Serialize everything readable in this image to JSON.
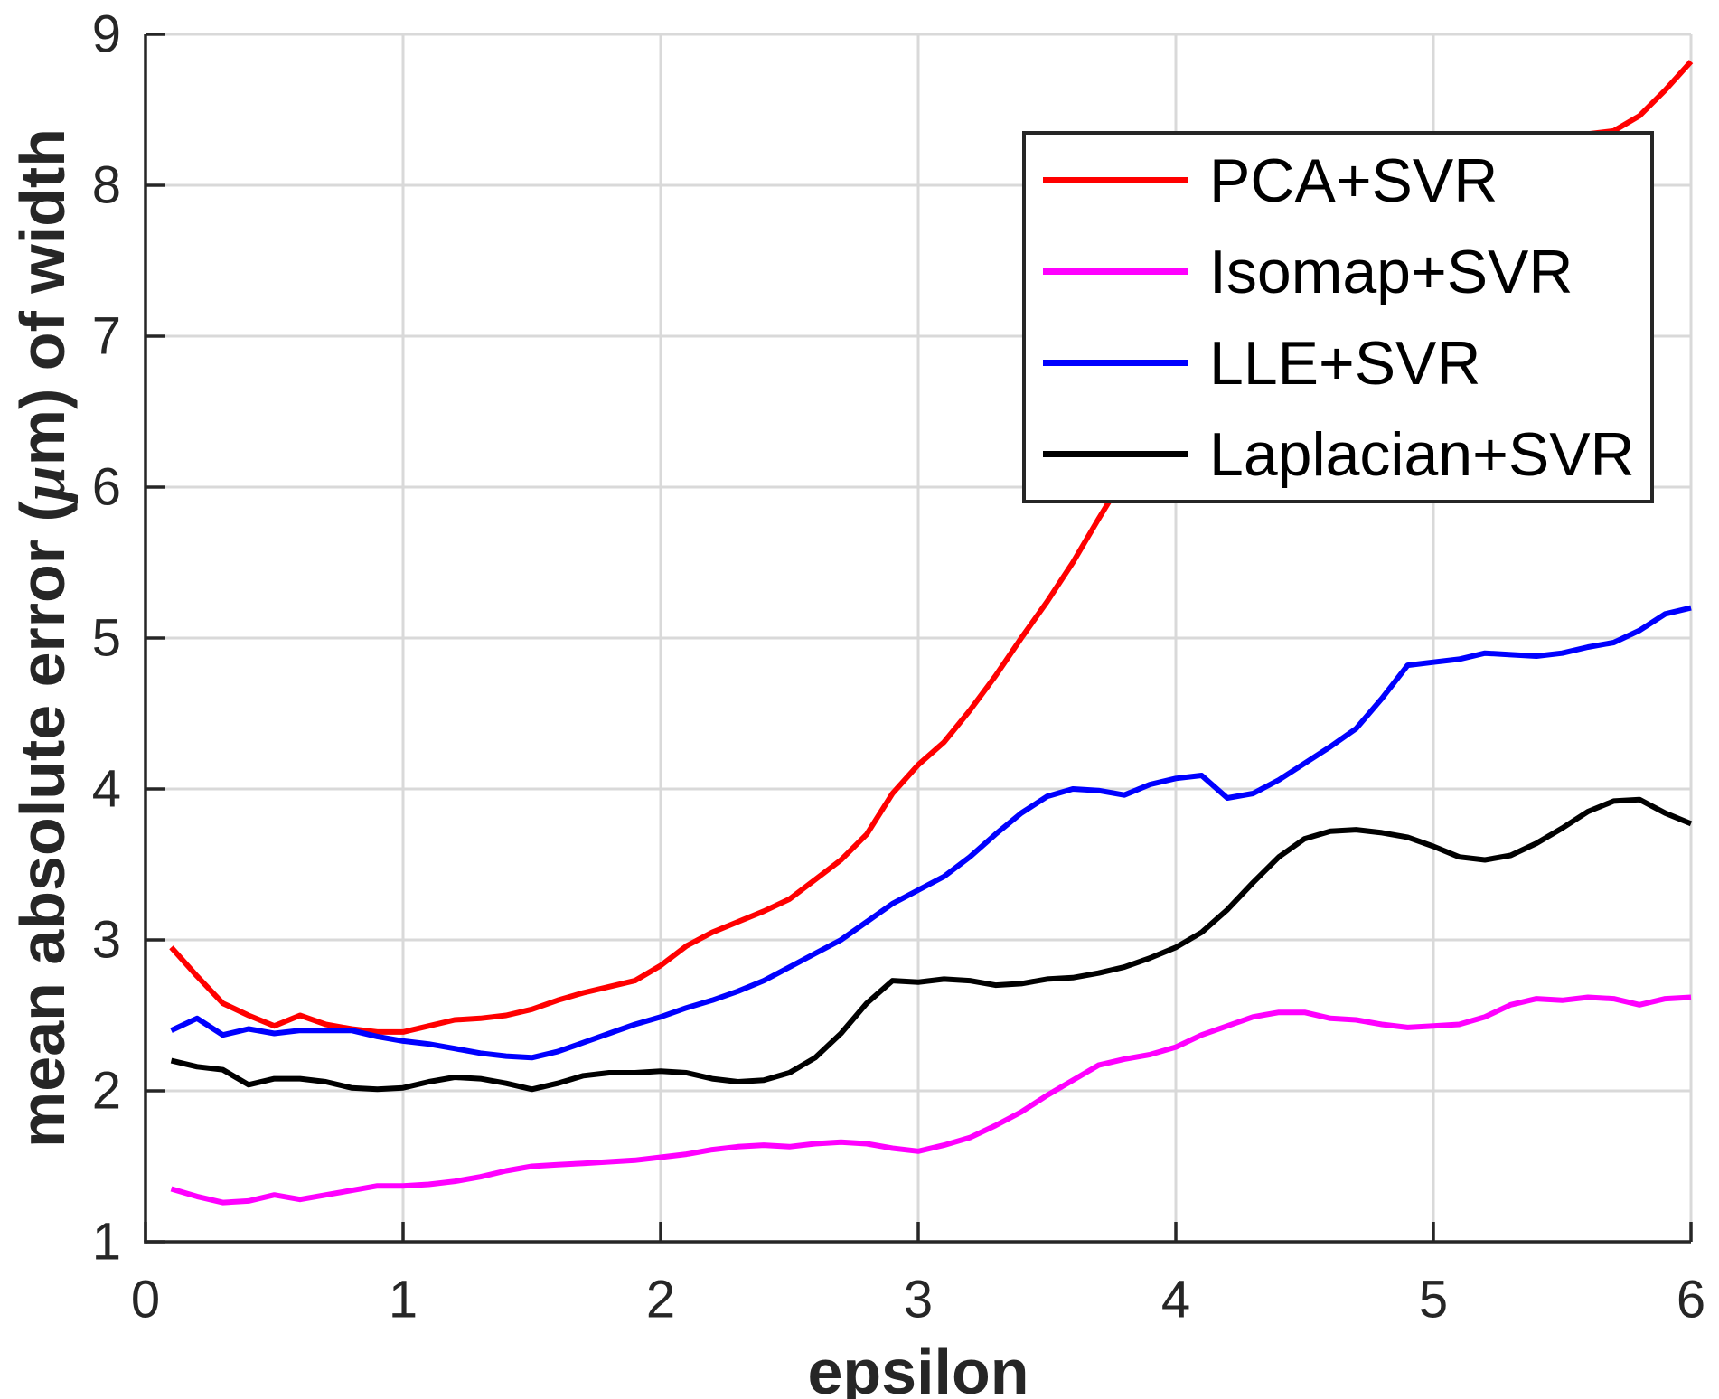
{
  "figure": {
    "background": "#ffffff"
  },
  "axes": {
    "axis_color": "#262626",
    "grid_color": "#d9d9d9",
    "x": {
      "label": "epsilon",
      "ticks": [
        "0",
        "1",
        "2",
        "3",
        "4",
        "5",
        "6"
      ]
    },
    "y": {
      "label_full": "mean absolute error (μm) of width",
      "label_pre": "mean absolute error (",
      "label_mu": "μ",
      "label_post": "m) of width",
      "ticks": [
        "1",
        "2",
        "3",
        "4",
        "5",
        "6",
        "7",
        "8",
        "9"
      ]
    }
  },
  "legend": {
    "position": "northeast",
    "border_color": "#262626",
    "background": "#ffffff"
  },
  "chart_data": {
    "type": "line",
    "title": "",
    "xlabel": "epsilon",
    "ylabel": "mean absolute error (μm) of width",
    "xlim": [
      0,
      6
    ],
    "ylim": [
      1,
      9
    ],
    "grid": true,
    "legend_position": "northeast",
    "x": [
      0.1,
      0.2,
      0.3,
      0.4,
      0.5,
      0.6,
      0.7,
      0.8,
      0.9,
      1.0,
      1.1,
      1.2,
      1.3,
      1.4,
      1.5,
      1.6,
      1.7,
      1.8,
      1.9,
      2.0,
      2.1,
      2.2,
      2.3,
      2.4,
      2.5,
      2.6,
      2.7,
      2.8,
      2.9,
      3.0,
      3.1,
      3.2,
      3.3,
      3.4,
      3.5,
      3.6,
      3.7,
      3.8,
      3.9,
      4.0,
      4.1,
      4.2,
      4.3,
      4.4,
      4.5,
      4.6,
      4.7,
      4.8,
      4.9,
      5.0,
      5.1,
      5.2,
      5.3,
      5.4,
      5.5,
      5.6,
      5.7,
      5.8,
      5.9,
      6.0
    ],
    "series": [
      {
        "name": "PCA+SVR",
        "color": "#ff0000",
        "values": [
          2.95,
          2.76,
          2.58,
          2.5,
          2.43,
          2.5,
          2.44,
          2.41,
          2.39,
          2.39,
          2.43,
          2.47,
          2.48,
          2.5,
          2.54,
          2.6,
          2.65,
          2.69,
          2.73,
          2.83,
          2.96,
          3.05,
          3.12,
          3.19,
          3.27,
          3.4,
          3.53,
          3.7,
          3.97,
          4.16,
          4.31,
          4.52,
          4.75,
          5.0,
          5.24,
          5.5,
          5.79,
          6.07,
          6.33,
          6.58,
          6.81,
          7.02,
          7.22,
          7.41,
          7.58,
          7.73,
          7.87,
          7.99,
          8.09,
          8.17,
          8.24,
          8.29,
          8.32,
          8.34,
          8.34,
          8.34,
          8.36,
          8.46,
          8.63,
          8.82
        ]
      },
      {
        "name": "Isomap+SVR",
        "color": "#ff00ff",
        "values": [
          1.35,
          1.3,
          1.26,
          1.27,
          1.31,
          1.28,
          1.31,
          1.34,
          1.37,
          1.37,
          1.38,
          1.4,
          1.43,
          1.47,
          1.5,
          1.51,
          1.52,
          1.53,
          1.54,
          1.56,
          1.58,
          1.61,
          1.63,
          1.64,
          1.63,
          1.65,
          1.66,
          1.65,
          1.62,
          1.6,
          1.64,
          1.69,
          1.77,
          1.86,
          1.97,
          2.07,
          2.17,
          2.21,
          2.24,
          2.29,
          2.37,
          2.43,
          2.49,
          2.52,
          2.52,
          2.48,
          2.47,
          2.44,
          2.42,
          2.43,
          2.44,
          2.49,
          2.57,
          2.61,
          2.6,
          2.62,
          2.61,
          2.57,
          2.61,
          2.62
        ]
      },
      {
        "name": "LLE+SVR",
        "color": "#0000ff",
        "values": [
          2.4,
          2.48,
          2.37,
          2.41,
          2.38,
          2.4,
          2.4,
          2.4,
          2.36,
          2.33,
          2.31,
          2.28,
          2.25,
          2.23,
          2.22,
          2.26,
          2.32,
          2.38,
          2.44,
          2.49,
          2.55,
          2.6,
          2.66,
          2.73,
          2.82,
          2.91,
          3.0,
          3.12,
          3.24,
          3.33,
          3.42,
          3.55,
          3.7,
          3.84,
          3.95,
          4.0,
          3.99,
          3.96,
          4.03,
          4.07,
          4.09,
          3.94,
          3.97,
          4.06,
          4.17,
          4.28,
          4.4,
          4.6,
          4.82,
          4.84,
          4.86,
          4.9,
          4.89,
          4.88,
          4.9,
          4.94,
          4.97,
          5.05,
          5.16,
          5.2
        ]
      },
      {
        "name": "Laplacian+SVR",
        "color": "#000000",
        "values": [
          2.2,
          2.16,
          2.14,
          2.04,
          2.08,
          2.08,
          2.06,
          2.02,
          2.01,
          2.02,
          2.06,
          2.09,
          2.08,
          2.05,
          2.01,
          2.05,
          2.1,
          2.12,
          2.12,
          2.13,
          2.12,
          2.08,
          2.06,
          2.07,
          2.12,
          2.22,
          2.38,
          2.58,
          2.73,
          2.72,
          2.74,
          2.73,
          2.7,
          2.71,
          2.74,
          2.75,
          2.78,
          2.82,
          2.88,
          2.95,
          3.05,
          3.2,
          3.38,
          3.55,
          3.67,
          3.72,
          3.73,
          3.71,
          3.68,
          3.62,
          3.55,
          3.53,
          3.56,
          3.64,
          3.74,
          3.85,
          3.92,
          3.93,
          3.84,
          3.77
        ]
      }
    ]
  }
}
